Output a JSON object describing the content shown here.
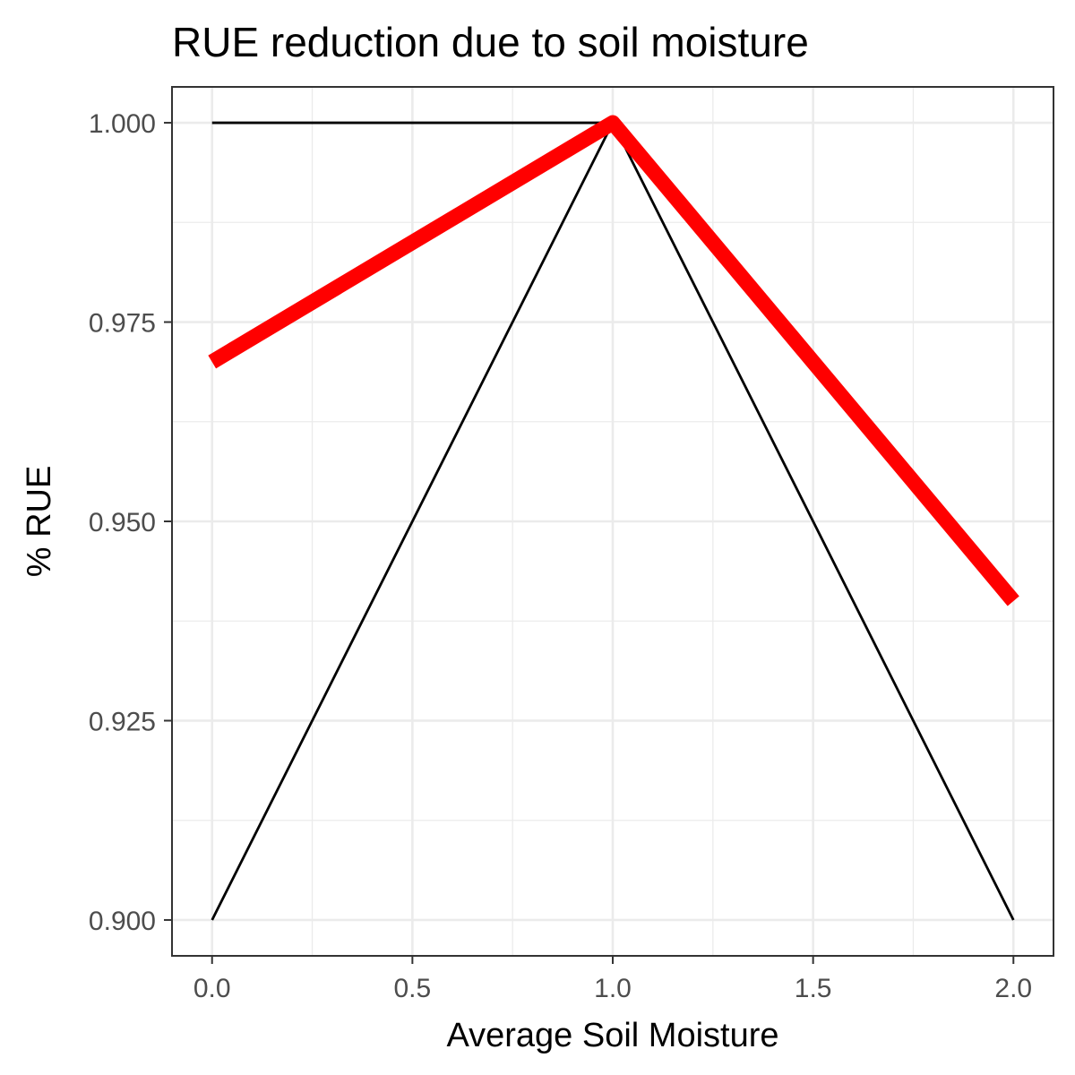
{
  "chart_data": {
    "type": "line",
    "title": "RUE reduction due to soil moisture",
    "xlabel": "Average Soil Moisture",
    "ylabel": "% RUE",
    "xlim": [
      -0.1,
      2.1
    ],
    "ylim": [
      0.8955,
      1.0045
    ],
    "x_ticks": [
      0.0,
      0.5,
      1.0,
      1.5,
      2.0
    ],
    "x_tick_labels": [
      "0.0",
      "0.5",
      "1.0",
      "1.5",
      "2.0"
    ],
    "y_ticks": [
      0.9,
      0.925,
      0.95,
      0.975,
      1.0
    ],
    "y_tick_labels": [
      "0.900",
      "0.925",
      "0.950",
      "0.975",
      "1.000"
    ],
    "grid": true,
    "legend": "none",
    "series": [
      {
        "x": [
          0,
          1
        ],
        "y": [
          1.0,
          1.0
        ],
        "color": "#000000",
        "width": "thin"
      },
      {
        "x": [
          0,
          1,
          2
        ],
        "y": [
          0.9,
          1.0,
          0.9
        ],
        "color": "#000000",
        "width": "thin"
      },
      {
        "x": [
          0,
          1,
          2
        ],
        "y": [
          0.97,
          1.0,
          0.94
        ],
        "color": "#ff0000",
        "width": "thick"
      }
    ]
  }
}
